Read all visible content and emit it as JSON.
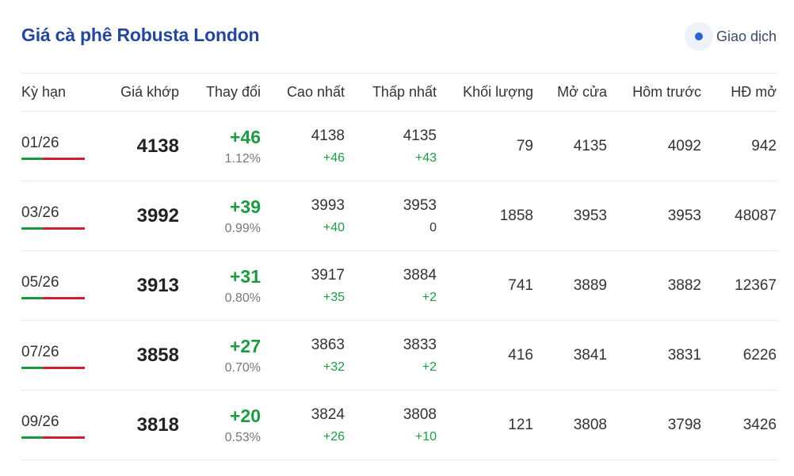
{
  "header": {
    "title": "Giá cà phê Robusta London",
    "status_label": "Giao dịch",
    "status_color": "#2d5fd6"
  },
  "table": {
    "columns": [
      "Kỳ hạn",
      "Giá khớp",
      "Thay đổi",
      "Cao nhất",
      "Thấp nhất",
      "Khối lượng",
      "Mở cửa",
      "Hôm trước",
      "HĐ mở"
    ],
    "rows": [
      {
        "term": "01/26",
        "price": "4138",
        "change": "+46",
        "change_pct": "1.12%",
        "high": "4138",
        "high_chg": "+46",
        "low": "4135",
        "low_chg": "+43",
        "volume": "79",
        "open": "4135",
        "prev": "4092",
        "oi": "942"
      },
      {
        "term": "03/26",
        "price": "3992",
        "change": "+39",
        "change_pct": "0.99%",
        "high": "3993",
        "high_chg": "+40",
        "low": "3953",
        "low_chg": "0",
        "volume": "1858",
        "open": "3953",
        "prev": "3953",
        "oi": "48087"
      },
      {
        "term": "05/26",
        "price": "3913",
        "change": "+31",
        "change_pct": "0.80%",
        "high": "3917",
        "high_chg": "+35",
        "low": "3884",
        "low_chg": "+2",
        "volume": "741",
        "open": "3889",
        "prev": "3882",
        "oi": "12367"
      },
      {
        "term": "07/26",
        "price": "3858",
        "change": "+27",
        "change_pct": "0.70%",
        "high": "3863",
        "high_chg": "+32",
        "low": "3833",
        "low_chg": "+2",
        "volume": "416",
        "open": "3841",
        "prev": "3831",
        "oi": "6226"
      },
      {
        "term": "09/26",
        "price": "3818",
        "change": "+20",
        "change_pct": "0.53%",
        "high": "3824",
        "high_chg": "+26",
        "low": "3808",
        "low_chg": "+10",
        "volume": "121",
        "open": "3808",
        "prev": "3798",
        "oi": "3426"
      }
    ]
  },
  "colors": {
    "up": "#1e9a44",
    "down": "#d61f2c",
    "title": "#24479b"
  }
}
